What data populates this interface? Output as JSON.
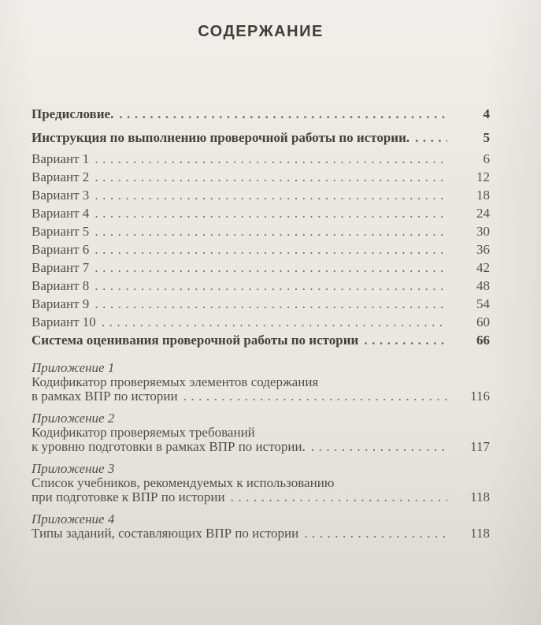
{
  "document": {
    "title": "СОДЕРЖАНИЕ",
    "colors": {
      "background": "#eae7e0",
      "text": "#544e47",
      "bold_text": "#46413a",
      "title": "#423d36",
      "dots": "#6e6860"
    },
    "entries": [
      {
        "kind": "preface",
        "label": "Предисловие.",
        "page": "4"
      },
      {
        "kind": "instruction",
        "label": "Инструкция по выполнению проверочной работы по истории.",
        "page": "5"
      },
      {
        "kind": "variant",
        "label": "Вариант 1",
        "page": "6"
      },
      {
        "kind": "variant",
        "label": "Вариант 2",
        "page": "12"
      },
      {
        "kind": "variant",
        "label": "Вариант 3",
        "page": "18"
      },
      {
        "kind": "variant",
        "label": "Вариант 4",
        "page": "24"
      },
      {
        "kind": "variant",
        "label": "Вариант 5",
        "page": "30"
      },
      {
        "kind": "variant",
        "label": "Вариант 6",
        "page": "36"
      },
      {
        "kind": "variant",
        "label": "Вариант 7",
        "page": "42"
      },
      {
        "kind": "variant",
        "label": "Вариант 8",
        "page": "48"
      },
      {
        "kind": "variant",
        "label": "Вариант 9",
        "page": "54"
      },
      {
        "kind": "variant",
        "label": "Вариант 10",
        "page": "60"
      },
      {
        "kind": "system",
        "label": "Система оценивания проверочной работы по истории",
        "page": "66"
      },
      {
        "kind": "appendix",
        "heading": "Приложение 1",
        "body_lines": [
          "Кодификатор проверяемых элементов содержания"
        ],
        "tail_line": "в рамках ВПР по истории",
        "page": "116"
      },
      {
        "kind": "appendix",
        "heading": "Приложение 2",
        "body_lines": [
          "Кодификатор проверяемых требований"
        ],
        "tail_line": "к уровню подготовки в рамках ВПР по истории.",
        "page": "117"
      },
      {
        "kind": "appendix",
        "heading": "Приложение 3",
        "body_lines": [
          "Список учебников, рекомендуемых к использованию"
        ],
        "tail_line": "при подготовке к ВПР по истории",
        "page": "118"
      },
      {
        "kind": "appendix",
        "heading": "Приложение 4",
        "body_lines": [],
        "tail_line": "Типы заданий, составляющих ВПР по истории",
        "page": "118"
      }
    ]
  }
}
